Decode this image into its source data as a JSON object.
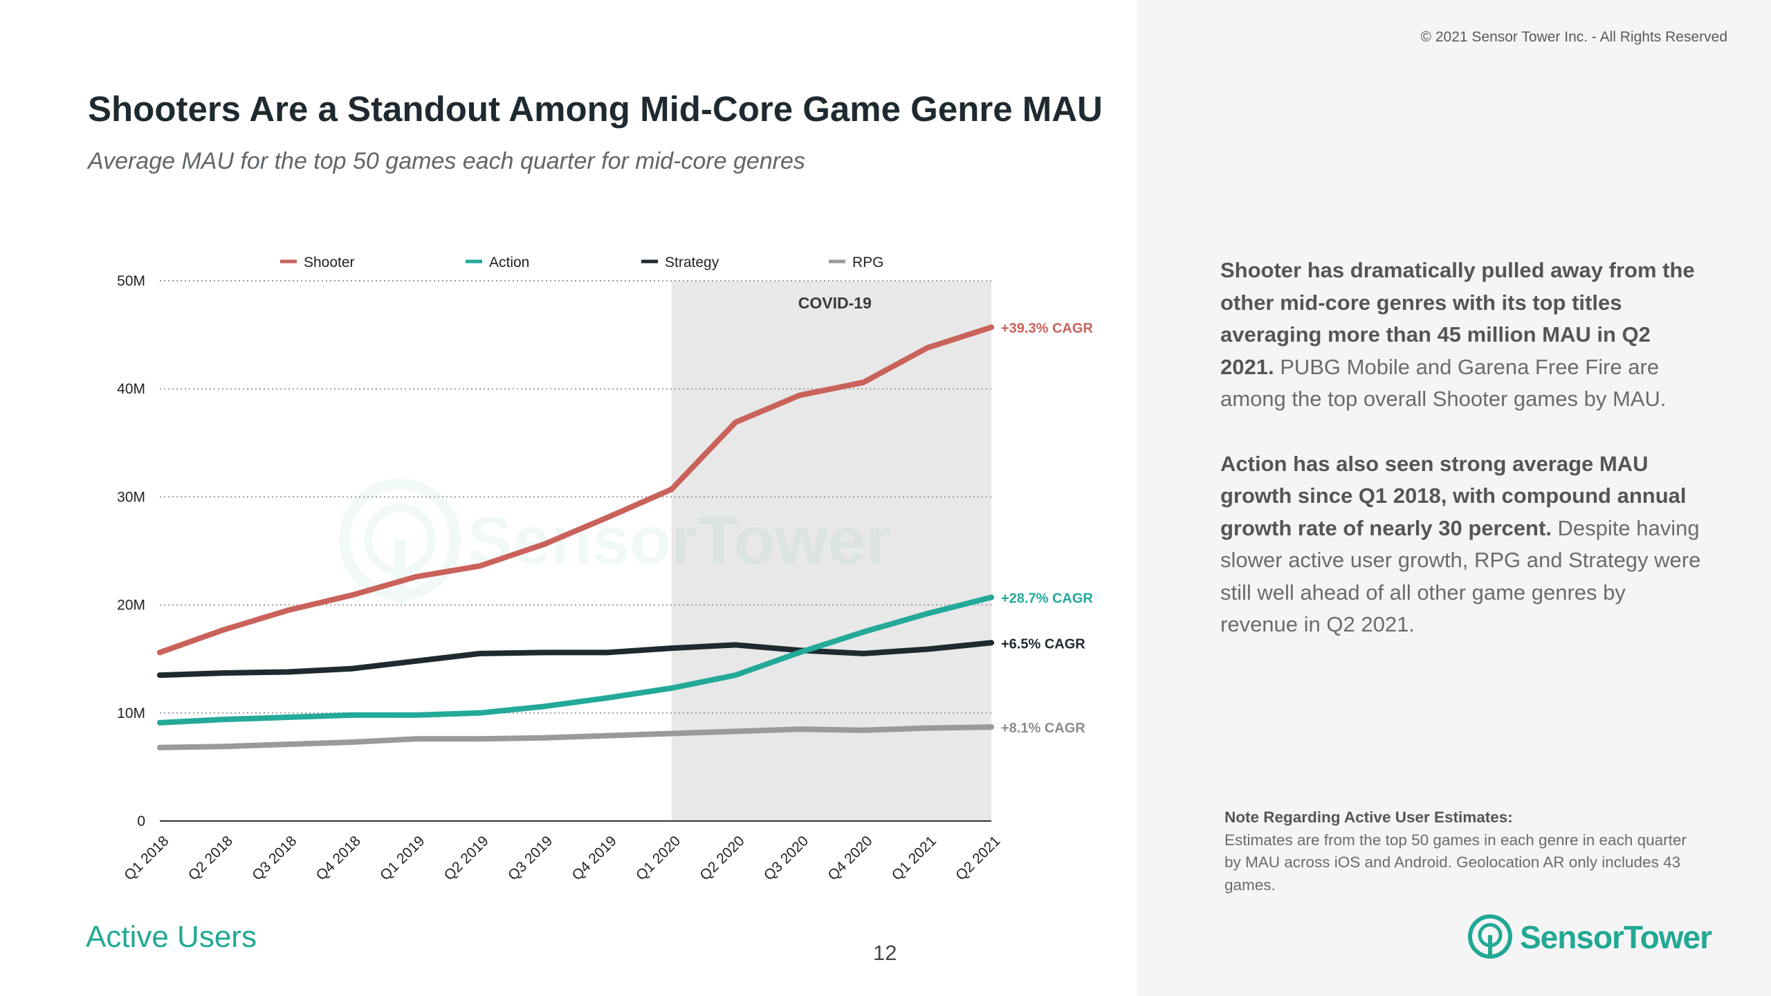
{
  "header": {
    "title": "Shooters Are a Standout Among Mid-Core Game Genre MAU",
    "subtitle": "Average MAU for the top 50 games each quarter for mid-core genres",
    "copyright": "© 2021 Sensor Tower Inc. - All Rights Reserved"
  },
  "commentary": {
    "p1_bold": "Shooter has dramatically pulled away from the other mid-core genres with its top titles averaging more than 45 million MAU in Q2 2021.",
    "p1_rest": " PUBG Mobile and Garena Free Fire are among the top overall Shooter games by MAU.",
    "p2_bold": "Action has also seen strong average MAU growth since Q1 2018, with compound annual growth rate of nearly 30 percent.",
    "p2_rest": " Despite having slower active user growth, RPG and Strategy were still well ahead of all other game genres by revenue in Q2 2021."
  },
  "note": {
    "title": "Note Regarding Active User Estimates:",
    "body": "Estimates are from the top 50 games in each genre in each quarter by MAU across iOS and Android. Geolocation AR only includes 43 games."
  },
  "footer": {
    "section": "Active Users",
    "page": "12",
    "logo": "SensorTower"
  },
  "watermark": "SensorTower",
  "colors": {
    "shooter": "#c9625a",
    "action": "#23a999",
    "strategy": "#1e2a30",
    "rpg": "#9a9a9a",
    "covid_band": "#e8e8e8",
    "brand": "#21a896"
  },
  "chart_data": {
    "type": "line",
    "categories": [
      "Q1 2018",
      "Q2 2018",
      "Q3 2018",
      "Q4 2018",
      "Q1 2019",
      "Q2 2019",
      "Q3 2019",
      "Q4 2019",
      "Q1 2020",
      "Q2 2020",
      "Q3 2020",
      "Q4 2020",
      "Q1 2021",
      "Q2 2021"
    ],
    "y_ticks": [
      {
        "value": 0,
        "label": "0"
      },
      {
        "value": 10000000,
        "label": "10M"
      },
      {
        "value": 20000000,
        "label": "20M"
      },
      {
        "value": 30000000,
        "label": "30M"
      },
      {
        "value": 40000000,
        "label": "40M"
      },
      {
        "value": 50000000,
        "label": "50M"
      }
    ],
    "ylim": [
      0,
      50000000
    ],
    "grid": "dotted horizontal",
    "legend_position": "top",
    "shaded_region": {
      "label": "COVID-19",
      "from": "Q1 2020",
      "to": "Q2 2021"
    },
    "series": [
      {
        "name": "Shooter",
        "color_key": "shooter",
        "annotation": "+39.3% CAGR",
        "values": [
          15600000,
          17700000,
          19500000,
          20900000,
          22600000,
          23600000,
          25600000,
          28100000,
          30700000,
          36900000,
          39400000,
          40600000,
          43800000,
          45700000
        ]
      },
      {
        "name": "Action",
        "color_key": "action",
        "annotation": "+28.7% CAGR",
        "values": [
          9100000,
          9400000,
          9600000,
          9800000,
          9800000,
          10000000,
          10600000,
          11400000,
          12300000,
          13500000,
          15600000,
          17500000,
          19200000,
          20700000
        ]
      },
      {
        "name": "Strategy",
        "color_key": "strategy",
        "annotation": "+6.5% CAGR",
        "values": [
          13500000,
          13700000,
          13800000,
          14100000,
          14800000,
          15500000,
          15600000,
          15600000,
          16000000,
          16300000,
          15800000,
          15500000,
          15900000,
          16500000
        ]
      },
      {
        "name": "RPG",
        "color_key": "rpg",
        "annotation": "+8.1% CAGR",
        "values": [
          6800000,
          6900000,
          7100000,
          7300000,
          7600000,
          7600000,
          7700000,
          7900000,
          8100000,
          8300000,
          8500000,
          8400000,
          8600000,
          8700000
        ]
      }
    ]
  }
}
